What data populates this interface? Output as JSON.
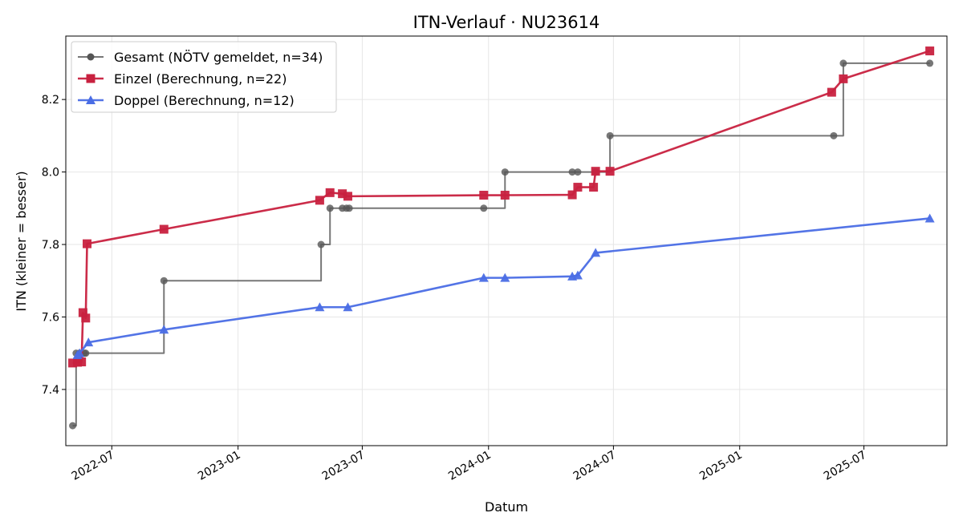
{
  "chart_data": {
    "type": "line",
    "title": "ITN-Verlauf · NU23614",
    "xlabel": "Datum",
    "ylabel": "ITN  (kleiner = besser)",
    "x_ticks": [
      "2022-07",
      "2023-01",
      "2023-07",
      "2024-01",
      "2024-07",
      "2025-01",
      "2025-07"
    ],
    "y_ticks": [
      "7.4",
      "7.6",
      "7.8",
      "8.0",
      "8.2"
    ],
    "ylim": [
      7.245,
      8.375
    ],
    "xlim": [
      "2022-04-25",
      "2025-10-30"
    ],
    "grid": true,
    "legend_position": "top-left",
    "series": [
      {
        "name": "Gesamt (NÖTV gemeldet, n=34)",
        "color": "#555555",
        "marker": "circle",
        "step": true,
        "x": [
          "2022-05-05",
          "2022-05-10",
          "2022-05-15",
          "2022-05-22",
          "2022-05-24",
          "2022-09-15",
          "2023-05-02",
          "2023-05-15",
          "2023-06-02",
          "2023-06-08",
          "2023-06-12",
          "2023-12-25",
          "2024-01-25",
          "2024-05-02",
          "2024-05-10",
          "2024-06-05",
          "2024-06-26",
          "2025-05-18",
          "2025-06-01",
          "2025-10-05"
        ],
        "y": [
          7.3,
          7.5,
          7.5,
          7.5,
          7.5,
          7.7,
          7.8,
          7.9,
          7.9,
          7.9,
          7.9,
          7.9,
          8.0,
          8.0,
          8.0,
          8.0,
          8.1,
          8.1,
          8.3,
          8.3
        ]
      },
      {
        "name": "Einzel (Berechnung, n=22)",
        "color": "#c8213f",
        "marker": "square",
        "step": false,
        "x": [
          "2022-05-05",
          "2022-05-12",
          "2022-05-18",
          "2022-05-20",
          "2022-05-24",
          "2022-05-26",
          "2022-09-15",
          "2023-04-30",
          "2023-05-15",
          "2023-06-02",
          "2023-06-10",
          "2023-12-25",
          "2024-01-25",
          "2024-05-02",
          "2024-05-10",
          "2024-06-02",
          "2024-06-05",
          "2024-06-26",
          "2025-05-15",
          "2025-06-01",
          "2025-10-05"
        ],
        "y": [
          7.473,
          7.475,
          7.476,
          7.612,
          7.597,
          7.802,
          7.842,
          7.922,
          7.943,
          7.94,
          7.933,
          7.936,
          7.936,
          7.937,
          7.958,
          7.958,
          8.002,
          8.002,
          8.22,
          8.257,
          8.334
        ]
      },
      {
        "name": "Doppel (Berechnung, n=12)",
        "color": "#4a6de5",
        "marker": "triangle",
        "step": false,
        "x": [
          "2022-05-12",
          "2022-05-15",
          "2022-05-28",
          "2022-09-15",
          "2023-04-30",
          "2023-06-10",
          "2023-12-25",
          "2024-01-25",
          "2024-05-02",
          "2024-05-10",
          "2024-06-05",
          "2025-10-05"
        ],
        "y": [
          7.495,
          7.5,
          7.53,
          7.565,
          7.627,
          7.627,
          7.708,
          7.708,
          7.712,
          7.715,
          7.777,
          7.872
        ]
      }
    ]
  }
}
